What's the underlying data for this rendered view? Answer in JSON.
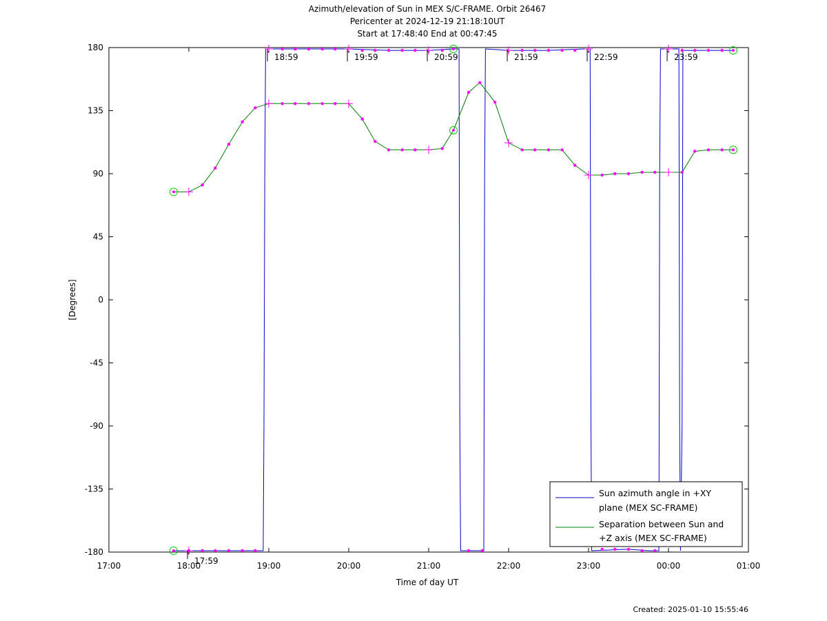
{
  "chart_data": {
    "type": "line",
    "title_lines": [
      "Azimuth/elevation of Sun in MEX S/C-FRAME.  Orbit 26467",
      "Pericenter at 2024-12-19 21:18:10UT",
      "Start at 17:48:40 End at 00:47:45"
    ],
    "xlabel": "Time of day UT",
    "ylabel": "[Degrees]",
    "xlim": [
      17.0,
      25.0
    ],
    "ylim": [
      -180,
      180
    ],
    "x_ticks": [
      {
        "v": 17,
        "label": "17:00"
      },
      {
        "v": 18,
        "label": "18:00"
      },
      {
        "v": 19,
        "label": "19:00"
      },
      {
        "v": 20,
        "label": "20:00"
      },
      {
        "v": 21,
        "label": "21:00"
      },
      {
        "v": 22,
        "label": "22:00"
      },
      {
        "v": 23,
        "label": "23:00"
      },
      {
        "v": 24,
        "label": "00:00"
      },
      {
        "v": 25,
        "label": "01:00"
      }
    ],
    "y_ticks": [
      180,
      135,
      90,
      45,
      0,
      -45,
      -90,
      -135,
      -180
    ],
    "time_markers": [
      {
        "x": 17.983,
        "y": -180,
        "label": "17:59",
        "below": true
      },
      {
        "x": 18.983,
        "y": 180,
        "label": "18:59"
      },
      {
        "x": 19.983,
        "y": 180,
        "label": "19:59"
      },
      {
        "x": 20.983,
        "y": 180,
        "label": "20:59"
      },
      {
        "x": 21.983,
        "y": 180,
        "label": "21:59"
      },
      {
        "x": 22.983,
        "y": 180,
        "label": "22:59"
      },
      {
        "x": 23.983,
        "y": 180,
        "label": "23:59"
      }
    ],
    "series": [
      {
        "name": "Sun azimuth angle in +XY plane (MEX SC-FRAME)",
        "legend_lines": [
          "Sun azimuth angle in +XY",
          "plane (MEX SC-FRAME)"
        ],
        "color": "#0000cc",
        "points": [
          [
            17.81,
            -179
          ],
          [
            18.0,
            -179
          ],
          [
            18.5,
            -179
          ],
          [
            18.93,
            -179
          ],
          [
            18.94,
            -90
          ],
          [
            18.95,
            90
          ],
          [
            18.96,
            179
          ],
          [
            19.5,
            179
          ],
          [
            20.0,
            179
          ],
          [
            20.5,
            178
          ],
          [
            21.0,
            178
          ],
          [
            21.31,
            179
          ],
          [
            21.38,
            179
          ],
          [
            21.39,
            -90
          ],
          [
            21.4,
            -179
          ],
          [
            21.55,
            -179
          ],
          [
            21.69,
            -179
          ],
          [
            21.7,
            90
          ],
          [
            21.71,
            179
          ],
          [
            22.0,
            178
          ],
          [
            22.5,
            178
          ],
          [
            22.94,
            179
          ],
          [
            23.02,
            179
          ],
          [
            23.03,
            -90
          ],
          [
            23.04,
            -179
          ],
          [
            23.5,
            -178
          ],
          [
            23.75,
            -179
          ],
          [
            23.88,
            -179
          ],
          [
            23.89,
            90
          ],
          [
            23.9,
            179
          ],
          [
            24.13,
            179
          ],
          [
            24.14,
            -90
          ],
          [
            24.15,
            -179
          ],
          [
            24.17,
            -90
          ],
          [
            24.18,
            178
          ],
          [
            24.5,
            178
          ],
          [
            24.81,
            178
          ]
        ],
        "dots": [
          [
            18.0,
            -179
          ],
          [
            18.17,
            -179
          ],
          [
            18.33,
            -179
          ],
          [
            18.5,
            -179
          ],
          [
            18.67,
            -179
          ],
          [
            18.83,
            -179
          ],
          [
            19.17,
            179
          ],
          [
            19.33,
            179
          ],
          [
            19.5,
            179
          ],
          [
            19.67,
            179
          ],
          [
            19.83,
            179
          ],
          [
            20.17,
            178
          ],
          [
            20.33,
            178
          ],
          [
            20.5,
            178
          ],
          [
            20.67,
            178
          ],
          [
            20.83,
            178
          ],
          [
            21.17,
            178
          ],
          [
            21.5,
            -179
          ],
          [
            21.67,
            -179
          ],
          [
            22.17,
            178
          ],
          [
            22.33,
            178
          ],
          [
            22.5,
            178
          ],
          [
            22.67,
            178
          ],
          [
            22.83,
            178
          ],
          [
            23.17,
            -178
          ],
          [
            23.33,
            -178
          ],
          [
            23.5,
            -178
          ],
          [
            23.67,
            -179
          ],
          [
            23.83,
            -179
          ],
          [
            24.17,
            178
          ],
          [
            24.33,
            178
          ],
          [
            24.5,
            178
          ],
          [
            24.67,
            178
          ]
        ]
      },
      {
        "name": "Separation between Sun and +Z axis (MEX SC-FRAME)",
        "legend_lines": [
          "Separation between Sun and",
          "+Z axis (MEX SC-FRAME)"
        ],
        "color": "#008000",
        "points": [
          [
            17.81,
            77
          ],
          [
            18.0,
            77
          ],
          [
            18.17,
            82
          ],
          [
            18.33,
            94
          ],
          [
            18.5,
            111
          ],
          [
            18.67,
            127
          ],
          [
            18.83,
            137
          ],
          [
            19.0,
            140
          ],
          [
            19.17,
            140
          ],
          [
            19.33,
            140
          ],
          [
            19.5,
            140
          ],
          [
            19.67,
            140
          ],
          [
            19.83,
            140
          ],
          [
            20.0,
            140
          ],
          [
            20.17,
            129
          ],
          [
            20.33,
            113
          ],
          [
            20.5,
            107
          ],
          [
            20.67,
            107
          ],
          [
            20.83,
            107
          ],
          [
            21.0,
            107
          ],
          [
            21.17,
            108
          ],
          [
            21.31,
            121
          ],
          [
            21.5,
            148
          ],
          [
            21.64,
            155
          ],
          [
            21.83,
            141
          ],
          [
            22.0,
            112
          ],
          [
            22.17,
            107
          ],
          [
            22.33,
            107
          ],
          [
            22.5,
            107
          ],
          [
            22.67,
            107
          ],
          [
            22.83,
            96
          ],
          [
            23.0,
            89
          ],
          [
            23.17,
            89
          ],
          [
            23.33,
            90
          ],
          [
            23.5,
            90
          ],
          [
            23.67,
            91
          ],
          [
            23.83,
            91
          ],
          [
            24.0,
            91
          ],
          [
            24.17,
            91
          ],
          [
            24.33,
            106
          ],
          [
            24.5,
            107
          ],
          [
            24.81,
            107
          ]
        ],
        "dots": [
          [
            18.17,
            82
          ],
          [
            18.33,
            94
          ],
          [
            18.5,
            111
          ],
          [
            18.67,
            127
          ],
          [
            18.83,
            137
          ],
          [
            19.17,
            140
          ],
          [
            19.33,
            140
          ],
          [
            19.5,
            140
          ],
          [
            19.67,
            140
          ],
          [
            19.83,
            140
          ],
          [
            20.17,
            129
          ],
          [
            20.33,
            113
          ],
          [
            20.5,
            107
          ],
          [
            20.67,
            107
          ],
          [
            20.83,
            107
          ],
          [
            21.17,
            108
          ],
          [
            21.5,
            148
          ],
          [
            21.64,
            155
          ],
          [
            21.83,
            141
          ],
          [
            22.17,
            107
          ],
          [
            22.33,
            107
          ],
          [
            22.5,
            107
          ],
          [
            22.67,
            107
          ],
          [
            22.83,
            96
          ],
          [
            23.17,
            89
          ],
          [
            23.33,
            90
          ],
          [
            23.5,
            90
          ],
          [
            23.67,
            91
          ],
          [
            23.83,
            91
          ],
          [
            24.17,
            91
          ],
          [
            24.33,
            106
          ],
          [
            24.5,
            107
          ],
          [
            24.67,
            107
          ]
        ],
        "hour_crosses": [
          [
            18.0,
            77
          ],
          [
            19.0,
            140
          ],
          [
            20.0,
            140
          ],
          [
            21.0,
            107
          ],
          [
            22.0,
            112
          ],
          [
            23.0,
            89
          ],
          [
            24.0,
            91
          ]
        ]
      }
    ],
    "hour_crosses_azimuth": [
      [
        18.0,
        -179
      ],
      [
        19.0,
        179
      ],
      [
        20.0,
        179
      ],
      [
        21.0,
        178
      ],
      [
        22.0,
        178
      ],
      [
        23.0,
        179
      ],
      [
        24.0,
        179
      ]
    ],
    "start_end_circles": [
      [
        17.81,
        -179
      ],
      [
        17.81,
        77
      ],
      [
        21.31,
        179
      ],
      [
        21.31,
        121
      ],
      [
        24.81,
        178
      ],
      [
        24.81,
        107
      ]
    ],
    "grid": false,
    "legend_position": "bottom-right",
    "marker_color": "#ff00ff",
    "circle_color": "#00cc00"
  },
  "footer": {
    "created": "Created: 2025-01-10 15:55:46"
  }
}
